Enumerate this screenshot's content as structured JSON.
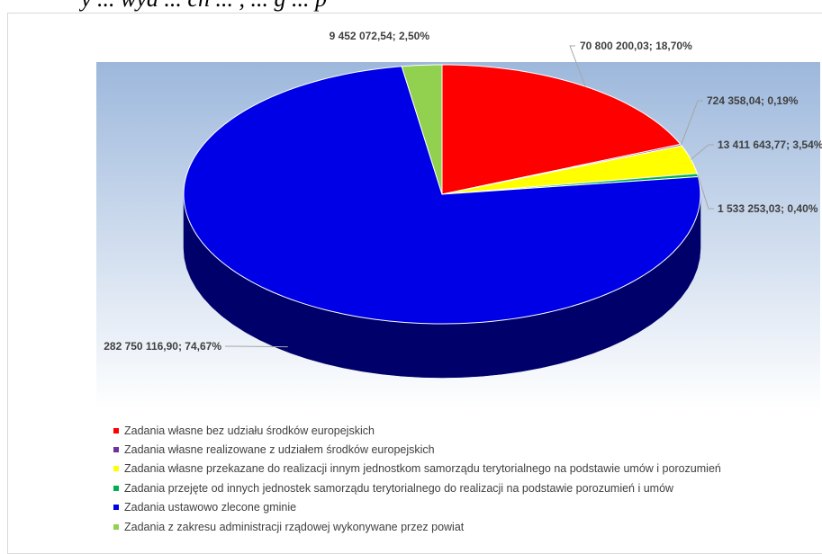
{
  "header_text": "y ... wyd ... ch ... , ... g ... p",
  "chart_data": {
    "type": "pie",
    "title": "",
    "colors": {
      "plot_area_top": "#9db8dc",
      "plot_area_bottom": "#ffffff",
      "label_text": "#404040",
      "leader_line": "#a6a6a6"
    },
    "slices": [
      {
        "name": "Zadania własne bez udziału środków europejskich",
        "value": 70800200.03,
        "percent": 18.7,
        "label": "70 800 200,03; 18,70%",
        "color": "#ff0000",
        "side_color": "#b00000"
      },
      {
        "name": "Zadania własne realizowane z udziałem środków europejskich",
        "value": 724358.04,
        "percent": 0.19,
        "label": "724 358,04; 0,19%",
        "color": "#7030a0",
        "side_color": "#4a1f6b"
      },
      {
        "name": "Zadania własne przekazane do realizacji innym jednostkom samorządu terytorialnego na podstawie umów i porozumień",
        "value": 13411643.77,
        "percent": 3.54,
        "label": "13 411 643,77; 3,54%",
        "color": "#ffff00",
        "side_color": "#b5b500"
      },
      {
        "name": "Zadania przejęte od innych jednostek samorządu terytorialnego do realizacji na podstawie porozumień i umów",
        "value": 1533253.03,
        "percent": 0.4,
        "label": "1 533 253,03; 0,40%",
        "color": "#00b050",
        "side_color": "#007a38"
      },
      {
        "name": "Zadania ustawowo zlecone gminie",
        "value": 282750116.9,
        "percent": 74.67,
        "label": "282 750 116,90; 74,67%",
        "color": "#0000e6",
        "side_color": "#00006b"
      },
      {
        "name": "Zadania z zakresu administracji rządowej wykonywane przez powiat",
        "value": 9452072.54,
        "percent": 2.5,
        "label": "9 452 072,54; 2,50%",
        "color": "#92d050",
        "side_color": "#5e8a30"
      }
    ],
    "legend_position": "bottom-left"
  }
}
